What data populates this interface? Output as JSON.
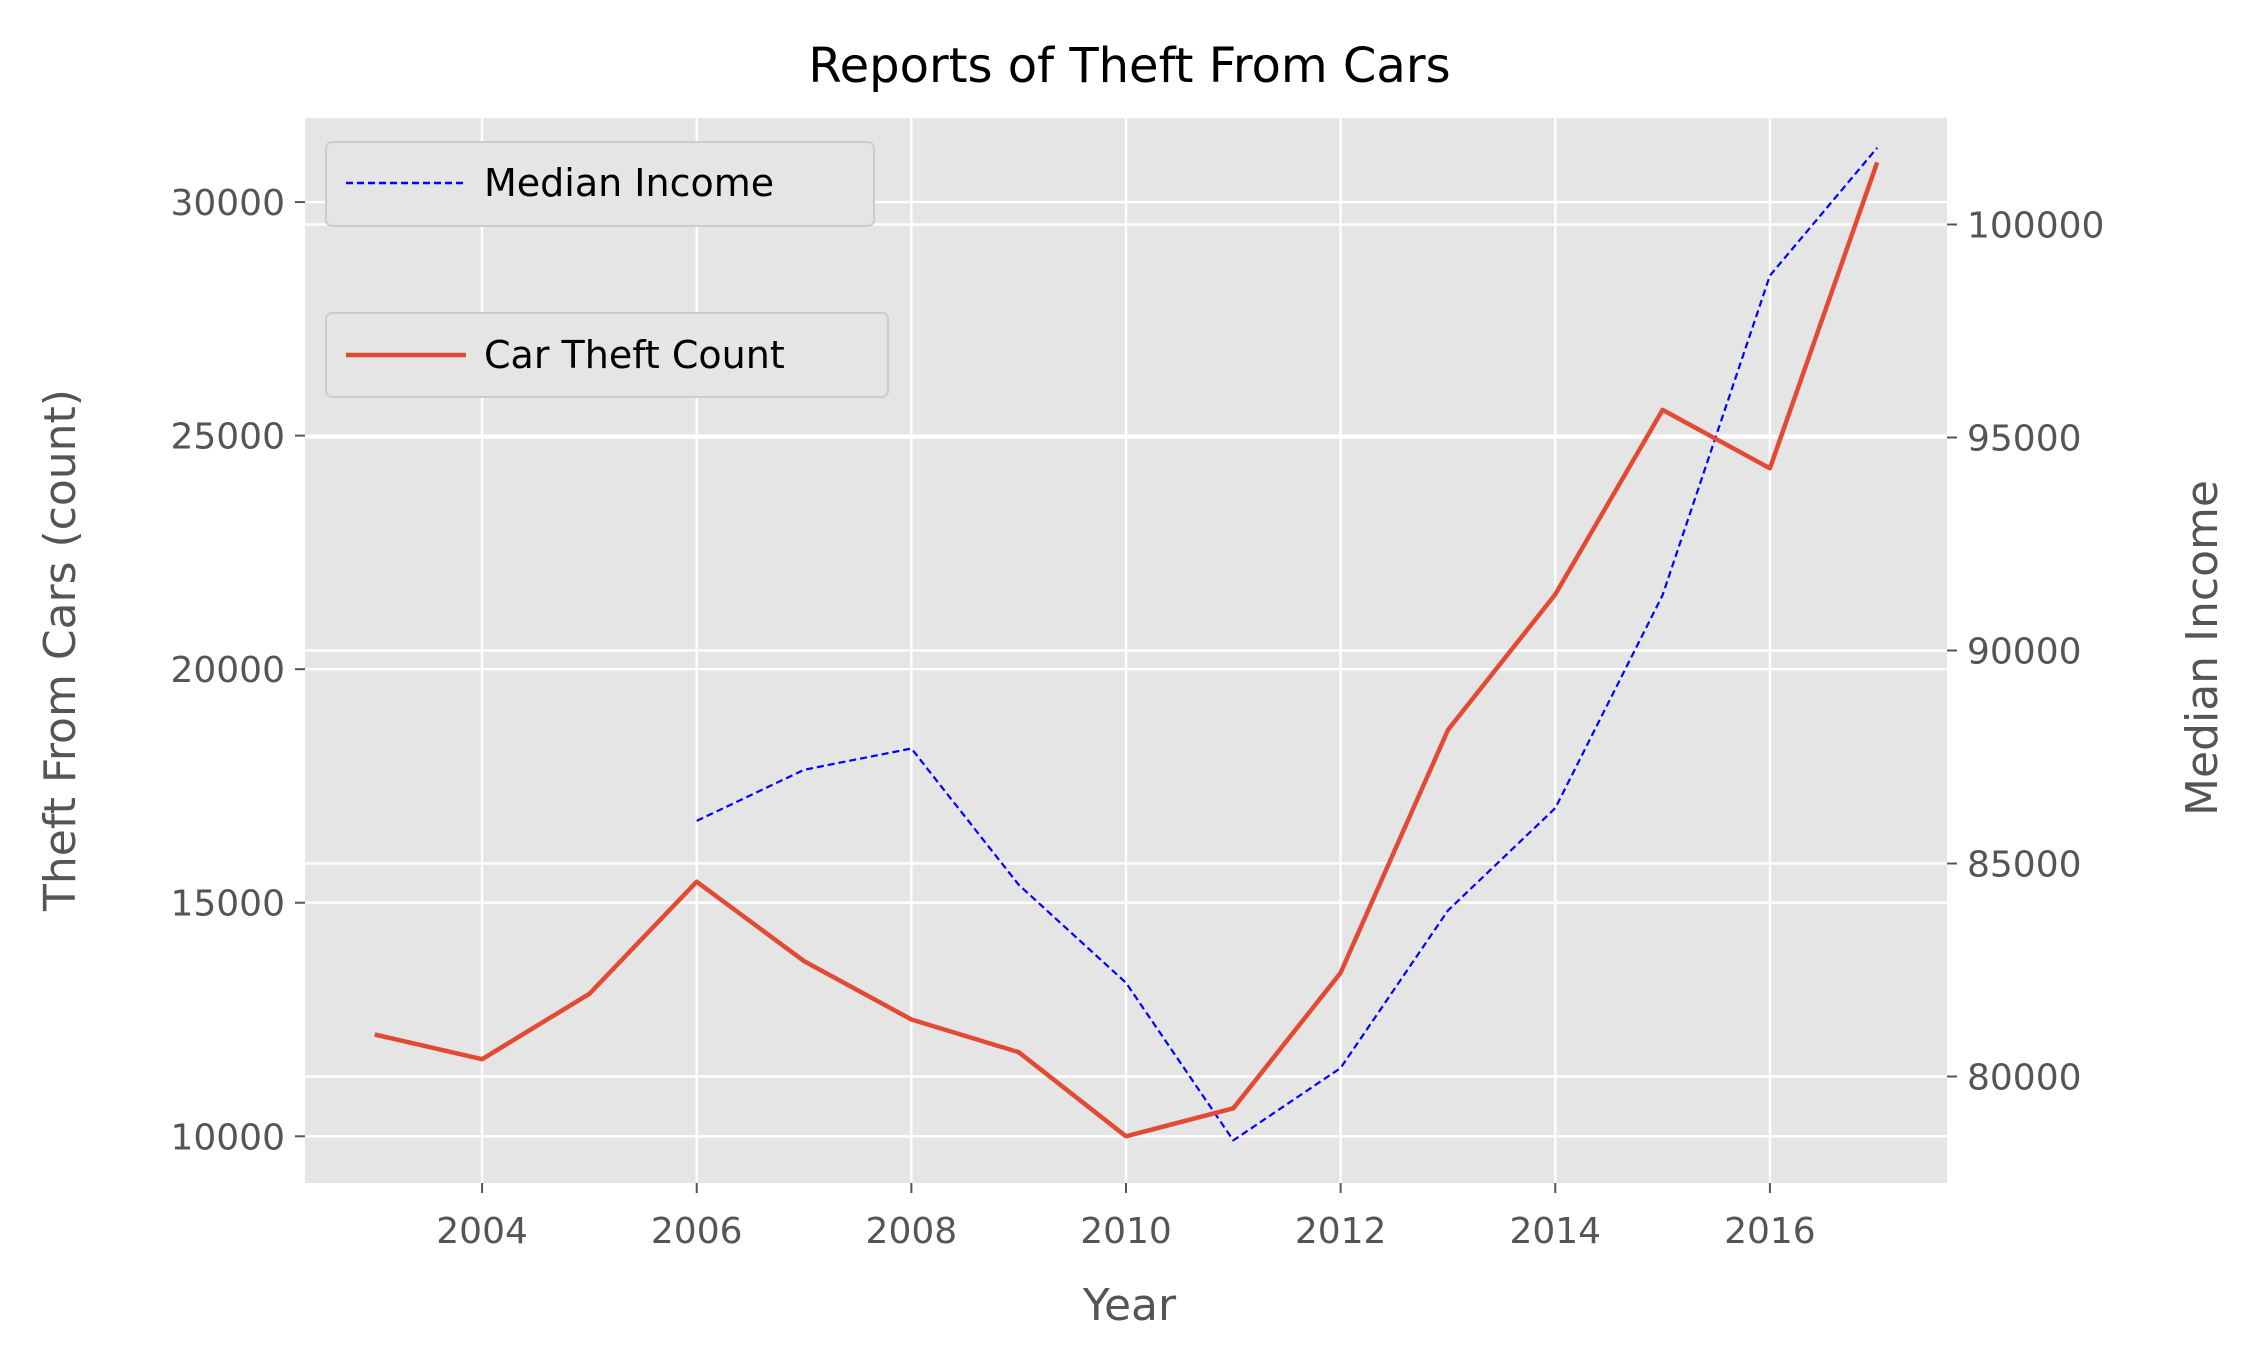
{
  "chart_data": {
    "type": "line",
    "title": "Reports of Theft From Cars",
    "xlabel": "Year",
    "ylabel": "Theft From Cars (count)",
    "ylabel_right": "Median Income",
    "xlim": [
      2002.35,
      2017.65
    ],
    "ylim": [
      9000,
      31800
    ],
    "ylim_right": [
      77500,
      102500
    ],
    "x_ticks": [
      2004,
      2006,
      2008,
      2010,
      2012,
      2014,
      2016
    ],
    "y_ticks": [
      10000,
      15000,
      20000,
      25000,
      30000
    ],
    "y_ticks_right": [
      80000,
      85000,
      90000,
      95000,
      100000
    ],
    "grid": true,
    "series": [
      {
        "name": "Car Theft Count",
        "axis": "left",
        "color": "#E24A33",
        "style": "solid",
        "legend_position": "upper-left (second box)",
        "x": [
          2003,
          2004,
          2005,
          2006,
          2007,
          2008,
          2009,
          2010,
          2011,
          2012,
          2013,
          2014,
          2015,
          2016,
          2017
        ],
        "values": [
          12180,
          11650,
          13050,
          15450,
          13750,
          12500,
          11800,
          10000,
          10600,
          13500,
          18700,
          21600,
          25550,
          24300,
          30850
        ]
      },
      {
        "name": "Median Income",
        "axis": "right",
        "color": "#0000FF",
        "style": "dashed",
        "legend_position": "upper-left (first box)",
        "x": [
          2006,
          2007,
          2008,
          2009,
          2010,
          2011,
          2012,
          2013,
          2014,
          2015,
          2016,
          2017
        ],
        "values": [
          86000,
          87200,
          87700,
          84500,
          82200,
          78500,
          80200,
          83900,
          86300,
          91300,
          98800,
          101800
        ]
      }
    ]
  }
}
